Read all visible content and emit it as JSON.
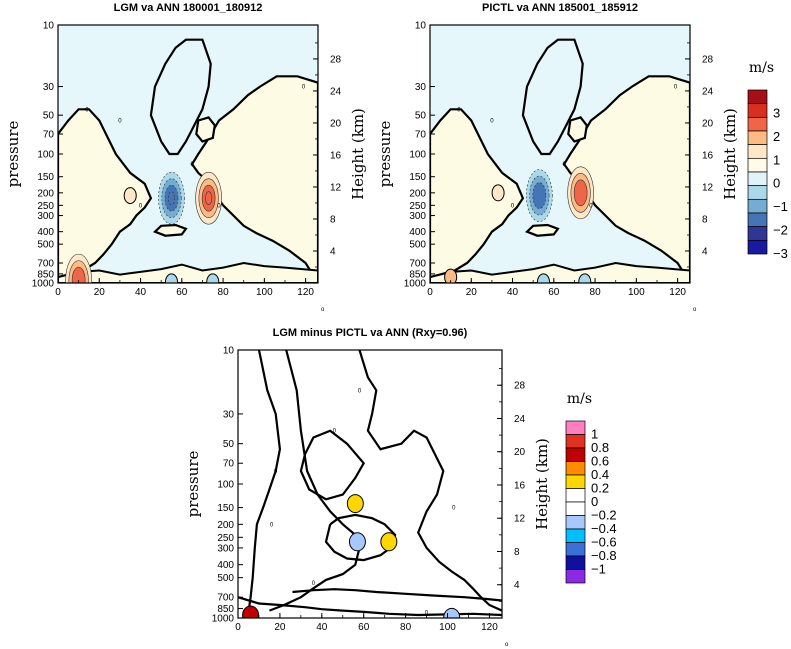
{
  "chart_data": [
    {
      "type": "contour",
      "title": "LGM va ANN 180001_180912",
      "ylabel": "pressure",
      "y2label": "Height (km)",
      "xlim": [
        0,
        126
      ],
      "ylim_pressure": [
        1000,
        10
      ],
      "x_ticks": [
        "0",
        "20",
        "40",
        "60",
        "80",
        "100",
        "120"
      ],
      "p_ticks": [
        "10",
        "30",
        "50",
        "70",
        "100",
        "150",
        "200",
        "250",
        "300",
        "400",
        "500",
        "700",
        "850",
        "1000"
      ],
      "h_ticks": [
        "4",
        "8",
        "12",
        "16",
        "20",
        "24",
        "28"
      ],
      "zero_contour_label": "0",
      "xaxis_marker": "o",
      "features": [
        {
          "lat": 55,
          "p": 220,
          "value": -2.5
        },
        {
          "lat": 73,
          "p": 220,
          "value": 2.5
        },
        {
          "lat": 35,
          "p": 210,
          "value": 0.5
        },
        {
          "lat": 10,
          "p": 950,
          "value": 1.5
        },
        {
          "lat": 55,
          "p": 980,
          "value": -0.5
        },
        {
          "lat": 75,
          "p": 980,
          "value": -0.5
        }
      ]
    },
    {
      "type": "contour",
      "title": "PICTL va ANN 185001_185912",
      "ylabel": "pressure",
      "y2label": "Height (km)",
      "xlim": [
        0,
        126
      ],
      "ylim_pressure": [
        1000,
        10
      ],
      "x_ticks": [
        "0",
        "20",
        "40",
        "60",
        "80",
        "100",
        "120"
      ],
      "p_ticks": [
        "10",
        "30",
        "50",
        "70",
        "100",
        "150",
        "200",
        "250",
        "300",
        "400",
        "500",
        "700",
        "850",
        "1000"
      ],
      "h_ticks": [
        "4",
        "8",
        "12",
        "16",
        "20",
        "24",
        "28"
      ],
      "zero_contour_label": "0",
      "xaxis_marker": "o",
      "features": [
        {
          "lat": 53,
          "p": 210,
          "value": -2.0
        },
        {
          "lat": 73,
          "p": 200,
          "value": 2.0
        },
        {
          "lat": 33,
          "p": 200,
          "value": 0.5
        },
        {
          "lat": 10,
          "p": 900,
          "value": 1.0
        },
        {
          "lat": 55,
          "p": 980,
          "value": -0.5
        },
        {
          "lat": 75,
          "p": 980,
          "value": -0.5
        }
      ]
    },
    {
      "type": "contour",
      "title": "LGM minus PICTL va ANN (Rxy=0.96)",
      "ylabel": "pressure",
      "y2label": "Height (km)",
      "xlim": [
        0,
        126
      ],
      "ylim_pressure": [
        1000,
        10
      ],
      "x_ticks": [
        "0",
        "20",
        "40",
        "60",
        "80",
        "100",
        "120"
      ],
      "p_ticks": [
        "10",
        "30",
        "50",
        "70",
        "100",
        "150",
        "200",
        "250",
        "300",
        "400",
        "500",
        "700",
        "850",
        "1000"
      ],
      "h_ticks": [
        "4",
        "8",
        "12",
        "16",
        "20",
        "24",
        "28"
      ],
      "zero_contour_label": "0",
      "xaxis_marker": "o",
      "features": [
        {
          "lat": 56,
          "p": 140,
          "value": 0.3
        },
        {
          "lat": 57,
          "p": 270,
          "value": -0.3
        },
        {
          "lat": 72,
          "p": 270,
          "value": 0.3
        },
        {
          "lat": 102,
          "p": 990,
          "value": -0.3
        },
        {
          "lat": 6,
          "p": 950,
          "value": 0.6
        }
      ]
    }
  ],
  "colorbar_top": {
    "unit": "m/s",
    "labels": [
      "3",
      "2",
      "1",
      "0",
      "−1",
      "−2",
      "−3"
    ],
    "colors": [
      "#a50f15",
      "#d7301f",
      "#ef6548",
      "#fdbb84",
      "#fee8c8",
      "#fffbe6",
      "#e0f3f8",
      "#abd9e9",
      "#74add1",
      "#4575b4",
      "#313695",
      "#1a1aa0"
    ]
  },
  "colorbar_diff": {
    "unit": "m/s",
    "labels": [
      "1",
      "0.8",
      "0.6",
      "0.4",
      "0.2",
      "0",
      "−0.2",
      "−0.4",
      "−0.6",
      "−0.8",
      "−1"
    ],
    "colors": [
      "#ff7fbf",
      "#e0301e",
      "#c00000",
      "#ff8c00",
      "#ffd700",
      "#ffffff",
      "#ffffff",
      "#a6c8ff",
      "#00bfff",
      "#3c6fd8",
      "#1010a0",
      "#8a2be2"
    ]
  }
}
